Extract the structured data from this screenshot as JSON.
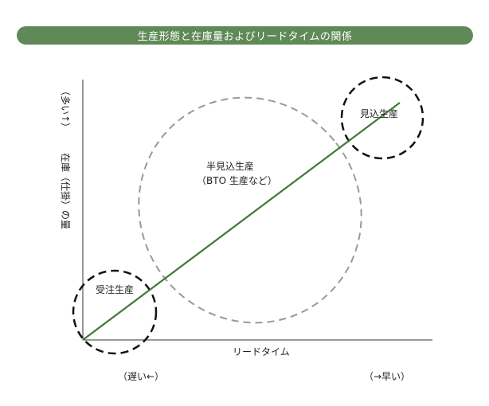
{
  "title": "生産形態と在庫量およびリードタイムの関係",
  "y_axis": {
    "label": "在庫（仕掛）の量",
    "high_label": "（多い↑）"
  },
  "x_axis": {
    "label": "リードタイム",
    "left_label": "（遅い←）",
    "right_label": "（→早い）"
  },
  "regions": {
    "make_to_order": "受注生産",
    "make_to_stock": "見込生産",
    "semi_line1": "半見込生産",
    "semi_line2": "（BTO 生産など）"
  },
  "colors": {
    "title_bg": "#5f8a57",
    "trend_line": "#3e7a32",
    "axis": "#333333",
    "dashed_black": "#111111",
    "dashed_grey": "#999999"
  }
}
